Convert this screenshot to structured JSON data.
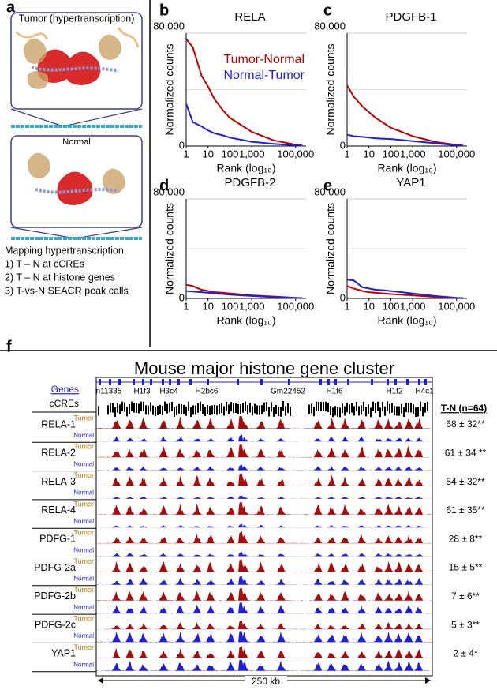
{
  "panel_labels": [
    "a",
    "b",
    "c",
    "d",
    "e",
    "f"
  ],
  "panel_a": {
    "tumor_label": "Tumor (hypertranscription)",
    "normal_label": "Normal",
    "mapping_title": "Mapping hypertranscription:",
    "steps": [
      "1) T – N at cCREs",
      "2) T – N at histone genes",
      "3) T-vs-N SEACR peak calls"
    ]
  },
  "chart_data": [
    {
      "type": "line",
      "title": "RELA",
      "x_label": "Rank (log₁₀)",
      "y_label": "Normalized counts",
      "xlog": true,
      "x": [
        1,
        2,
        5,
        10,
        20,
        50,
        100,
        1000,
        10000,
        100000,
        200000
      ],
      "xlim": [
        1,
        300000
      ],
      "xticks": [
        1,
        10,
        100,
        {
          "value": 1000,
          "label": "1,000"
        },
        {
          "value": 100000,
          "label": "100,000"
        }
      ],
      "ylim": [
        0,
        80000
      ],
      "yticks": [
        0,
        {
          "value": 80000,
          "label": "80,000"
        }
      ],
      "legend": "upper right",
      "series": [
        {
          "name": "Tumor-Normal",
          "color": "#c00000",
          "values": [
            76000,
            70000,
            50000,
            42000,
            33000,
            25000,
            20000,
            10000,
            4000,
            1000,
            500
          ]
        },
        {
          "name": "Normal-Tumor",
          "color": "#1f1fd6",
          "values": [
            30000,
            17000,
            14000,
            11000,
            9000,
            7500,
            6000,
            3000,
            1500,
            500,
            300
          ]
        }
      ]
    },
    {
      "type": "line",
      "title": "PDGFB-1",
      "x_label": "Rank (log₁₀)",
      "y_label": "Normalized counts",
      "xlog": true,
      "x": [
        1,
        2,
        5,
        10,
        20,
        50,
        100,
        1000,
        10000,
        100000,
        200000
      ],
      "xlim": [
        1,
        300000
      ],
      "xticks": [
        1,
        10,
        100,
        {
          "value": 1000,
          "label": "1,000"
        },
        {
          "value": 100000,
          "label": "100,000"
        }
      ],
      "ylim": [
        0,
        80000
      ],
      "yticks": [
        0,
        {
          "value": 80000,
          "label": "80,000"
        }
      ],
      "series": [
        {
          "color": "#c00000",
          "values": [
            43000,
            35000,
            28000,
            24000,
            20000,
            16000,
            13000,
            7000,
            3000,
            800,
            400
          ]
        },
        {
          "color": "#1f1fd6",
          "values": [
            8000,
            7000,
            6500,
            6000,
            5500,
            5200,
            5000,
            3500,
            2000,
            500,
            300
          ]
        }
      ]
    },
    {
      "type": "line",
      "title": "PDGFB-2",
      "x_label": "Rank (log₁₀)",
      "y_label": "Normalized counts",
      "xlog": true,
      "x": [
        1,
        2,
        5,
        10,
        20,
        50,
        100,
        1000,
        10000,
        100000,
        200000
      ],
      "xlim": [
        1,
        300000
      ],
      "xticks": [
        1,
        10,
        100,
        {
          "value": 1000,
          "label": "1,000"
        },
        {
          "value": 100000,
          "label": "100,000"
        }
      ],
      "ylim": [
        0,
        80000
      ],
      "yticks": [
        0,
        {
          "value": 80000,
          "label": "80,000"
        }
      ],
      "series": [
        {
          "color": "#c00000",
          "values": [
            11000,
            10000,
            7000,
            6000,
            5000,
            4500,
            4000,
            2500,
            1500,
            500,
            300
          ]
        },
        {
          "color": "#1f1fd6",
          "values": [
            6000,
            5500,
            5000,
            4500,
            4000,
            3500,
            3000,
            2000,
            1000,
            300,
            200
          ]
        }
      ]
    },
    {
      "type": "line",
      "title": "YAP1",
      "x_label": "Rank (log₁₀)",
      "y_label": "Normalized counts",
      "xlog": true,
      "x": [
        1,
        2,
        5,
        10,
        20,
        50,
        100,
        1000,
        10000,
        100000,
        200000
      ],
      "xlim": [
        1,
        300000
      ],
      "xticks": [
        1,
        10,
        100,
        {
          "value": 1000,
          "label": "1,000"
        },
        {
          "value": 100000,
          "label": "100,000"
        }
      ],
      "ylim": [
        0,
        80000
      ],
      "yticks": [
        0,
        {
          "value": 80000,
          "label": "80,000"
        }
      ],
      "series": [
        {
          "color": "#c00000",
          "values": [
            10000,
            8000,
            6000,
            5000,
            4500,
            4000,
            3500,
            2500,
            1200,
            300,
            200
          ]
        },
        {
          "color": "#1f1fd6",
          "values": [
            15000,
            14500,
            9000,
            8000,
            7000,
            6500,
            6000,
            4000,
            2000,
            500,
            300
          ]
        }
      ]
    }
  ],
  "browser": {
    "title": "Mouse major histone gene cluster",
    "genes_label": "Genes",
    "genes": [
      "n11335",
      "H1f3",
      "H3c4",
      "H2bc6",
      "Gm22452",
      "H1f6",
      "H1f2",
      "H4c1"
    ],
    "ccres_label": "cCREs",
    "stat_header": "T-N (n=64)",
    "tumor_label": "Tumor",
    "normal_label": "Normal",
    "rows": [
      {
        "name": "RELA-1",
        "stat": "68 ± 32**"
      },
      {
        "name": "RELA-2",
        "stat": "61 ± 34 **"
      },
      {
        "name": "RELA-3",
        "stat": "54 ± 32**"
      },
      {
        "name": "RELA-4",
        "stat": "61 ± 35**"
      },
      {
        "name": "PDFG-1",
        "stat": "28 ± 8**"
      },
      {
        "name": "PDFG-2a",
        "stat": "15 ± 5**"
      },
      {
        "name": "PDFG-2b",
        "stat": "7 ± 6**"
      },
      {
        "name": "PDFG-2c",
        "stat": "5 ± 3**"
      },
      {
        "name": "YAP1",
        "stat": "2 ± 4*"
      }
    ],
    "scale": "250 kb"
  }
}
